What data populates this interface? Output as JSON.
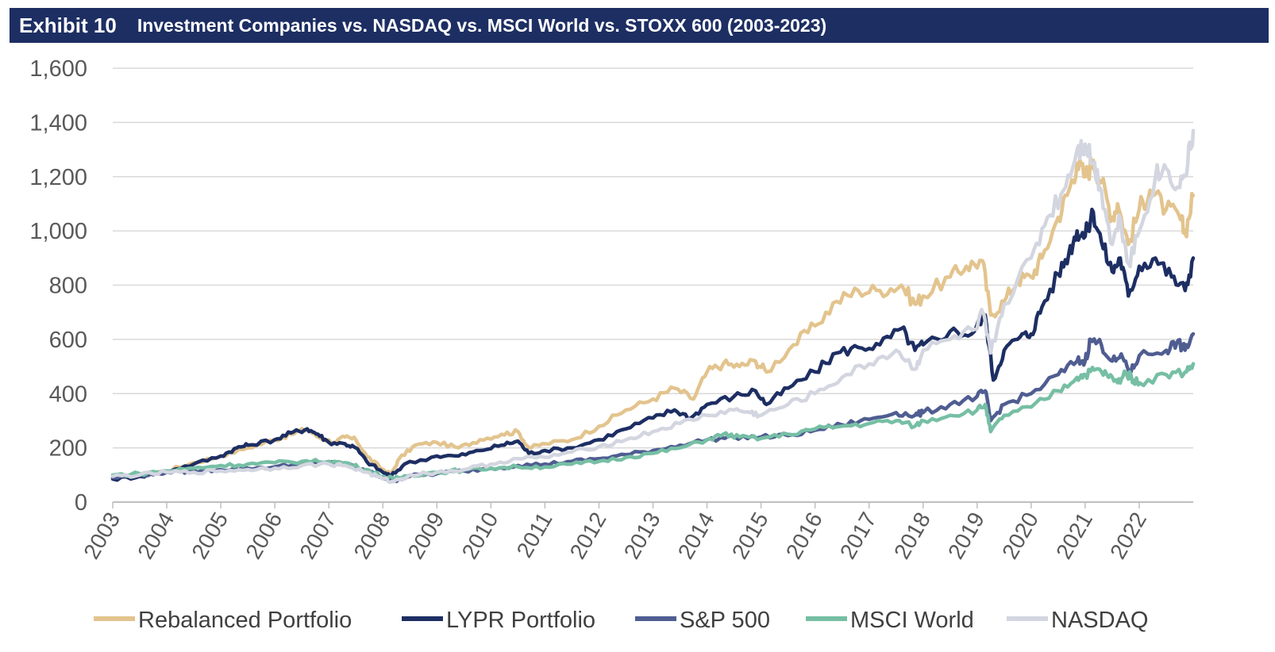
{
  "header": {
    "exhibit_label": "Exhibit 10",
    "title": "Investment Companies vs. NASDAQ vs. MSCI World vs. STOXX 600 (2003-2023)"
  },
  "chart_data": {
    "type": "line",
    "title": "Investment Companies vs. NASDAQ vs. MSCI World vs. STOXX 600 (2003-2023)",
    "xlabel": "",
    "ylabel": "",
    "xlim": [
      2003,
      2023
    ],
    "ylim": [
      0,
      1600
    ],
    "yticks": [
      0,
      200,
      400,
      600,
      800,
      1000,
      1200,
      1400,
      1600
    ],
    "ytick_labels": [
      "0",
      "200",
      "400",
      "600",
      "800",
      "1,000",
      "1,200",
      "1,400",
      "1,600"
    ],
    "xtick_labels": [
      "2003",
      "2004",
      "2005",
      "2006",
      "2007",
      "2008",
      "2009",
      "2010",
      "2011",
      "2012",
      "2013",
      "2014",
      "2015",
      "2016",
      "2017",
      "2018",
      "2019",
      "2020",
      "2021",
      "2022"
    ],
    "grid": "horizontal",
    "legend_position": "bottom",
    "series": [
      {
        "name": "Rebalanced Portfolio",
        "color": "#e3c48e",
        "points": [
          [
            2003,
            95
          ],
          [
            2003.5,
            100
          ],
          [
            2004,
            115
          ],
          [
            2004.5,
            145
          ],
          [
            2005,
            170
          ],
          [
            2005.5,
            200
          ],
          [
            2006,
            230
          ],
          [
            2006.3,
            250
          ],
          [
            2006.6,
            270
          ],
          [
            2006.8,
            240
          ],
          [
            2007.1,
            220
          ],
          [
            2007.3,
            240
          ],
          [
            2007.5,
            230
          ],
          [
            2007.7,
            170
          ],
          [
            2008,
            120
          ],
          [
            2008.15,
            100
          ],
          [
            2008.3,
            160
          ],
          [
            2008.6,
            210
          ],
          [
            2009,
            220
          ],
          [
            2009.4,
            200
          ],
          [
            2009.8,
            230
          ],
          [
            2010.2,
            250
          ],
          [
            2010.5,
            260
          ],
          [
            2010.7,
            200
          ],
          [
            2011,
            215
          ],
          [
            2011.5,
            230
          ],
          [
            2012,
            280
          ],
          [
            2012.5,
            340
          ],
          [
            2013,
            380
          ],
          [
            2013.4,
            420
          ],
          [
            2013.75,
            380
          ],
          [
            2014,
            480
          ],
          [
            2014.3,
            510
          ],
          [
            2014.6,
            500
          ],
          [
            2014.9,
            520
          ],
          [
            2015.1,
            480
          ],
          [
            2015.6,
            580
          ],
          [
            2016,
            650
          ],
          [
            2016.4,
            740
          ],
          [
            2016.8,
            780
          ],
          [
            2017.2,
            780
          ],
          [
            2017.6,
            800
          ],
          [
            2017.85,
            730
          ],
          [
            2018,
            760
          ],
          [
            2018.5,
            830
          ],
          [
            2018.8,
            870
          ],
          [
            2019.1,
            890
          ],
          [
            2019.25,
            690
          ],
          [
            2019.5,
            740
          ],
          [
            2019.75,
            820
          ],
          [
            2020,
            830
          ],
          [
            2020.2,
            900
          ],
          [
            2020.5,
            1050
          ],
          [
            2020.7,
            1150
          ],
          [
            2020.85,
            1250
          ],
          [
            2021,
            1200
          ],
          [
            2021.15,
            1260
          ],
          [
            2021.3,
            1180
          ],
          [
            2021.5,
            1050
          ],
          [
            2021.6,
            1100
          ],
          [
            2021.8,
            950
          ],
          [
            2022,
            1080
          ],
          [
            2022.2,
            1150
          ],
          [
            2022.5,
            1080
          ],
          [
            2022.75,
            1050
          ],
          [
            2022.85,
            990
          ],
          [
            2023,
            1130
          ]
        ]
      },
      {
        "name": "LYPR Portfolio",
        "color": "#1d2e63",
        "points": [
          [
            2003,
            85
          ],
          [
            2003.5,
            95
          ],
          [
            2004,
            115
          ],
          [
            2004.5,
            140
          ],
          [
            2005,
            170
          ],
          [
            2005.3,
            200
          ],
          [
            2005.5,
            210
          ],
          [
            2006,
            230
          ],
          [
            2006.3,
            255
          ],
          [
            2006.6,
            270
          ],
          [
            2006.8,
            250
          ],
          [
            2007,
            220
          ],
          [
            2007.3,
            215
          ],
          [
            2007.5,
            200
          ],
          [
            2007.7,
            150
          ],
          [
            2008,
            110
          ],
          [
            2008.15,
            95
          ],
          [
            2008.4,
            140
          ],
          [
            2009,
            170
          ],
          [
            2009.4,
            170
          ],
          [
            2009.8,
            190
          ],
          [
            2010.2,
            210
          ],
          [
            2010.5,
            225
          ],
          [
            2010.7,
            180
          ],
          [
            2011,
            190
          ],
          [
            2011.5,
            200
          ],
          [
            2012,
            230
          ],
          [
            2012.5,
            270
          ],
          [
            2013,
            310
          ],
          [
            2013.4,
            340
          ],
          [
            2013.7,
            310
          ],
          [
            2014,
            360
          ],
          [
            2014.5,
            390
          ],
          [
            2014.9,
            410
          ],
          [
            2015.1,
            360
          ],
          [
            2015.5,
            420
          ],
          [
            2016,
            480
          ],
          [
            2016.4,
            550
          ],
          [
            2016.8,
            570
          ],
          [
            2017.2,
            580
          ],
          [
            2017.6,
            640
          ],
          [
            2017.85,
            560
          ],
          [
            2018,
            580
          ],
          [
            2018.5,
            630
          ],
          [
            2018.9,
            620
          ],
          [
            2019.15,
            690
          ],
          [
            2019.3,
            450
          ],
          [
            2019.5,
            560
          ],
          [
            2019.8,
            610
          ],
          [
            2020,
            620
          ],
          [
            2020.2,
            720
          ],
          [
            2020.5,
            840
          ],
          [
            2020.7,
            920
          ],
          [
            2020.85,
            1000
          ],
          [
            2021,
            980
          ],
          [
            2021.15,
            1070
          ],
          [
            2021.3,
            960
          ],
          [
            2021.5,
            850
          ],
          [
            2021.65,
            900
          ],
          [
            2021.8,
            760
          ],
          [
            2022,
            870
          ],
          [
            2022.3,
            900
          ],
          [
            2022.6,
            830
          ],
          [
            2022.85,
            780
          ],
          [
            2023,
            900
          ]
        ]
      },
      {
        "name": "S&P 500",
        "color": "#4f5d91",
        "points": [
          [
            2003,
            90
          ],
          [
            2003.5,
            100
          ],
          [
            2004,
            110
          ],
          [
            2004.5,
            115
          ],
          [
            2005,
            120
          ],
          [
            2005.5,
            125
          ],
          [
            2006,
            130
          ],
          [
            2006.5,
            140
          ],
          [
            2007,
            145
          ],
          [
            2007.3,
            140
          ],
          [
            2007.7,
            115
          ],
          [
            2008,
            90
          ],
          [
            2008.2,
            80
          ],
          [
            2008.5,
            95
          ],
          [
            2009,
            105
          ],
          [
            2009.5,
            115
          ],
          [
            2010,
            125
          ],
          [
            2010.5,
            135
          ],
          [
            2011,
            140
          ],
          [
            2011.5,
            150
          ],
          [
            2012,
            160
          ],
          [
            2012.5,
            175
          ],
          [
            2013,
            190
          ],
          [
            2013.5,
            210
          ],
          [
            2014,
            230
          ],
          [
            2014.5,
            240
          ],
          [
            2015,
            240
          ],
          [
            2015.5,
            245
          ],
          [
            2016,
            265
          ],
          [
            2016.5,
            285
          ],
          [
            2017,
            305
          ],
          [
            2017.5,
            330
          ],
          [
            2017.85,
            320
          ],
          [
            2018,
            330
          ],
          [
            2018.5,
            360
          ],
          [
            2019,
            390
          ],
          [
            2019.15,
            410
          ],
          [
            2019.25,
            300
          ],
          [
            2019.5,
            360
          ],
          [
            2020,
            400
          ],
          [
            2020.5,
            470
          ],
          [
            2020.85,
            520
          ],
          [
            2021,
            520
          ],
          [
            2021.1,
            600
          ],
          [
            2021.3,
            580
          ],
          [
            2021.5,
            520
          ],
          [
            2021.7,
            530
          ],
          [
            2021.85,
            480
          ],
          [
            2022,
            540
          ],
          [
            2022.5,
            560
          ],
          [
            2022.7,
            590
          ],
          [
            2022.85,
            560
          ],
          [
            2023,
            620
          ]
        ]
      },
      {
        "name": "MSCI World",
        "color": "#76bfa4",
        "points": [
          [
            2003,
            100
          ],
          [
            2003.5,
            105
          ],
          [
            2004,
            115
          ],
          [
            2004.5,
            125
          ],
          [
            2005,
            135
          ],
          [
            2005.5,
            140
          ],
          [
            2006,
            145
          ],
          [
            2006.5,
            150
          ],
          [
            2007,
            150
          ],
          [
            2007.3,
            145
          ],
          [
            2007.7,
            120
          ],
          [
            2008,
            95
          ],
          [
            2008.2,
            85
          ],
          [
            2008.5,
            100
          ],
          [
            2009,
            110
          ],
          [
            2009.5,
            118
          ],
          [
            2010,
            125
          ],
          [
            2010.5,
            130
          ],
          [
            2011,
            130
          ],
          [
            2011.5,
            140
          ],
          [
            2012,
            150
          ],
          [
            2012.5,
            165
          ],
          [
            2013,
            180
          ],
          [
            2013.5,
            200
          ],
          [
            2014,
            230
          ],
          [
            2014.3,
            250
          ],
          [
            2014.6,
            240
          ],
          [
            2015,
            235
          ],
          [
            2015.5,
            250
          ],
          [
            2016,
            270
          ],
          [
            2016.5,
            280
          ],
          [
            2017,
            290
          ],
          [
            2017.5,
            300
          ],
          [
            2017.85,
            280
          ],
          [
            2018,
            300
          ],
          [
            2018.5,
            320
          ],
          [
            2019,
            340
          ],
          [
            2019.15,
            360
          ],
          [
            2019.25,
            260
          ],
          [
            2019.5,
            320
          ],
          [
            2020,
            350
          ],
          [
            2020.5,
            410
          ],
          [
            2020.85,
            460
          ],
          [
            2021,
            470
          ],
          [
            2021.2,
            490
          ],
          [
            2021.4,
            470
          ],
          [
            2021.6,
            440
          ],
          [
            2021.75,
            480
          ],
          [
            2021.9,
            450
          ],
          [
            2022,
            440
          ],
          [
            2022.5,
            470
          ],
          [
            2022.85,
            480
          ],
          [
            2023,
            510
          ]
        ]
      },
      {
        "name": "NASDAQ",
        "color": "#d3d6e0",
        "points": [
          [
            2003,
            95
          ],
          [
            2003.5,
            100
          ],
          [
            2004,
            110
          ],
          [
            2004.5,
            110
          ],
          [
            2005,
            115
          ],
          [
            2005.5,
            120
          ],
          [
            2006,
            125
          ],
          [
            2006.5,
            135
          ],
          [
            2007,
            140
          ],
          [
            2007.3,
            135
          ],
          [
            2007.7,
            110
          ],
          [
            2008,
            85
          ],
          [
            2008.2,
            75
          ],
          [
            2008.5,
            100
          ],
          [
            2009,
            110
          ],
          [
            2009.5,
            120
          ],
          [
            2010,
            140
          ],
          [
            2010.5,
            160
          ],
          [
            2011,
            165
          ],
          [
            2011.5,
            185
          ],
          [
            2012,
            205
          ],
          [
            2012.5,
            230
          ],
          [
            2013,
            260
          ],
          [
            2013.5,
            290
          ],
          [
            2014,
            320
          ],
          [
            2014.5,
            340
          ],
          [
            2014.8,
            330
          ],
          [
            2015,
            320
          ],
          [
            2015.5,
            360
          ],
          [
            2016,
            400
          ],
          [
            2016.5,
            460
          ],
          [
            2017,
            510
          ],
          [
            2017.5,
            560
          ],
          [
            2017.85,
            490
          ],
          [
            2018,
            560
          ],
          [
            2018.5,
            600
          ],
          [
            2019,
            640
          ],
          [
            2019.1,
            700
          ],
          [
            2019.25,
            550
          ],
          [
            2019.5,
            730
          ],
          [
            2020,
            900
          ],
          [
            2020.3,
            1050
          ],
          [
            2020.6,
            1150
          ],
          [
            2020.85,
            1300
          ],
          [
            2021,
            1320
          ],
          [
            2021.15,
            1250
          ],
          [
            2021.3,
            1150
          ],
          [
            2021.5,
            950
          ],
          [
            2021.65,
            1050
          ],
          [
            2021.8,
            880
          ],
          [
            2022,
            1000
          ],
          [
            2022.3,
            1200
          ],
          [
            2022.5,
            1230
          ],
          [
            2022.75,
            1160
          ],
          [
            2022.9,
            1250
          ],
          [
            2023,
            1370
          ]
        ]
      }
    ]
  }
}
